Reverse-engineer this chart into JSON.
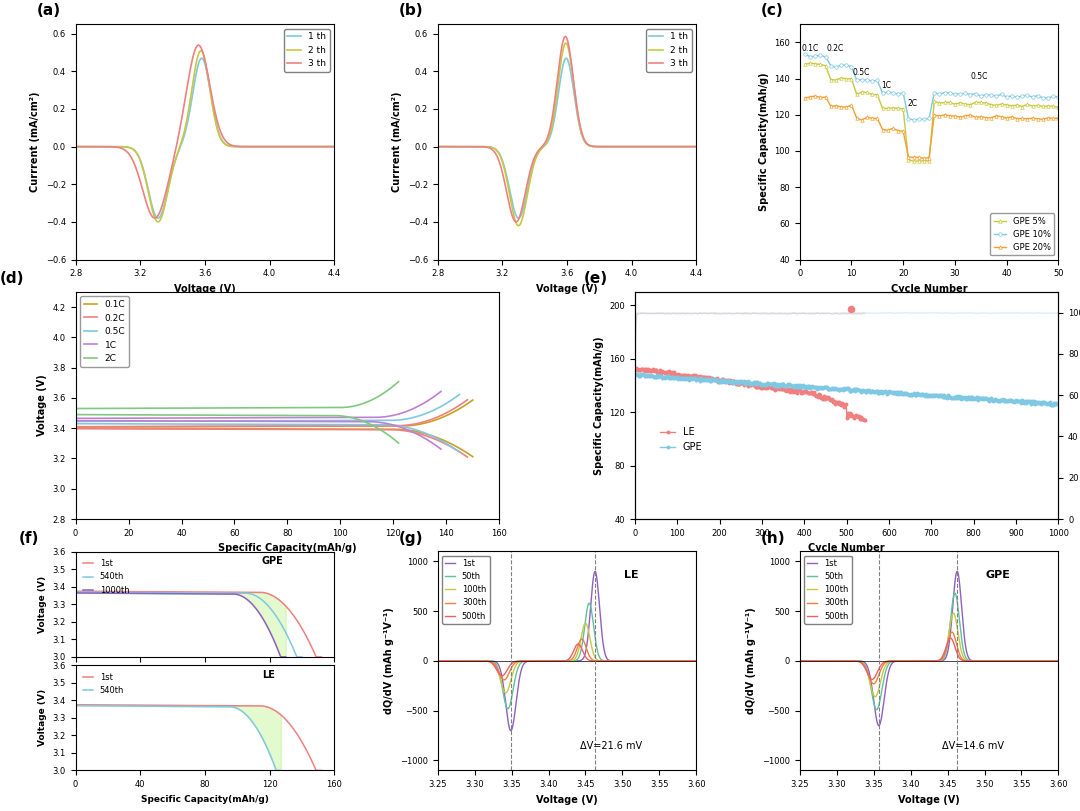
{
  "cv_colors_a": [
    "#7EC8E3",
    "#C8C840",
    "#F08080"
  ],
  "cv_colors_b": [
    "#7EC8E3",
    "#C8C840",
    "#F08080"
  ],
  "cv_legend": [
    "1 th",
    "2 th",
    "3 th"
  ],
  "rate_colors": [
    "#C8A020",
    "#F08080",
    "#7EC8E3",
    "#C080D0",
    "#80C880"
  ],
  "rate_legend": [
    "0.1C",
    "0.2C",
    "0.5C",
    "1C",
    "2C"
  ],
  "gpe_colors_c": [
    "#C8C840",
    "#7EC8E3",
    "#F0A030"
  ],
  "gpe_legend": [
    "GPE 5%",
    "GPE 10%",
    "GPE 20%"
  ],
  "le_color": "#F08080",
  "gpe_color": "#7EC8E3",
  "gpe_f_colors": [
    "#F08080",
    "#7EC8E3",
    "#9060C0"
  ],
  "le_f_colors": [
    "#F08080",
    "#7EC8E3"
  ],
  "dqdv_colors": [
    "#9060C0",
    "#60C0A0",
    "#C8C840",
    "#F08040",
    "#F06060"
  ],
  "dqdv_legend": [
    "1st",
    "50th",
    "100th",
    "300th",
    "500th"
  ]
}
